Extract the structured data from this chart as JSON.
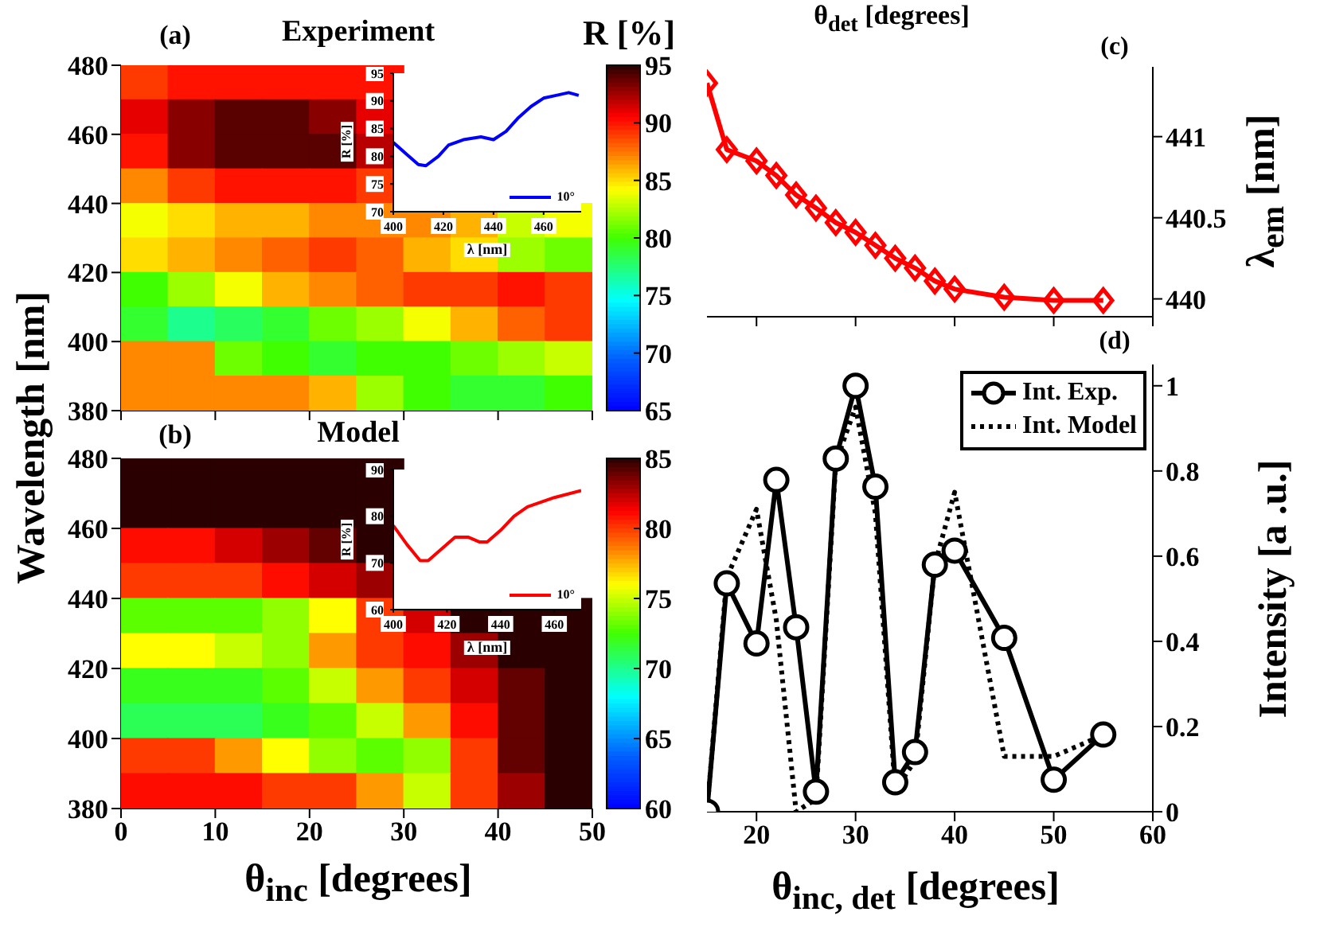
{
  "chart_data": [
    {
      "type": "heatmap",
      "title": "Experiment",
      "ylabel": "Wavelength [nm]",
      "clabel": "R [%]",
      "annotations": [
        "(a)"
      ],
      "x": [
        2.5,
        7.5,
        12.5,
        17.5,
        22.5,
        27.5,
        32.5,
        37.5,
        42.5,
        47.5
      ],
      "cells": [
        [
          89,
          90,
          90,
          90,
          90,
          90,
          null,
          null,
          null,
          null
        ],
        [
          91,
          93,
          94,
          94,
          93,
          91,
          null,
          null,
          null,
          null
        ],
        [
          90,
          93,
          94,
          94,
          94,
          92,
          null,
          null,
          null,
          null
        ],
        [
          87,
          89,
          90,
          90,
          90,
          89,
          null,
          null,
          null,
          null
        ],
        [
          84,
          85,
          86,
          86,
          87,
          87,
          87,
          86,
          83,
          84
        ],
        [
          85,
          86,
          87,
          88,
          89,
          88,
          86,
          85,
          82,
          81
        ],
        [
          80,
          82,
          84,
          86,
          87,
          88,
          89,
          89,
          90,
          89
        ],
        [
          79,
          77,
          78,
          79,
          81,
          82,
          84,
          86,
          88,
          89
        ],
        [
          87,
          87,
          81,
          80,
          79,
          80,
          80,
          81,
          82,
          83
        ],
        [
          87,
          87,
          87,
          87,
          86,
          82,
          80,
          79,
          79,
          80
        ]
      ],
      "xlim": [
        0,
        50
      ],
      "xticks": [
        {
          "value": 0,
          "label": null
        },
        {
          "value": 10,
          "label": null
        },
        {
          "value": 20,
          "label": null
        },
        {
          "value": 30,
          "label": null
        },
        {
          "value": 40,
          "label": null
        },
        {
          "value": 50,
          "label": null
        }
      ],
      "ylim": [
        380,
        480
      ],
      "yticks": [
        380,
        400,
        420,
        440,
        460,
        480
      ],
      "clim": [
        65,
        95
      ],
      "cticks": [
        65,
        70,
        75,
        80,
        85,
        90,
        95
      ],
      "tick_labels": "y"
    },
    {
      "type": "line",
      "xlabel": "λ [nm]",
      "ylabel": "R [%]",
      "legend": "bottom right",
      "x": [
        400,
        405,
        410,
        413,
        418,
        422,
        428,
        435,
        440,
        445,
        450,
        455,
        460,
        465,
        470,
        474
      ],
      "series": [
        {
          "name": "10°",
          "color": "#0000ff",
          "values": [
            82.5,
            80.5,
            78.5,
            78.3,
            80,
            82,
            83,
            83.5,
            83,
            84.5,
            87,
            89,
            90.5,
            91,
            91.5,
            91
          ]
        }
      ],
      "xlim": [
        400,
        475
      ],
      "xticks": [
        400,
        420,
        440,
        460
      ],
      "ylim": [
        70,
        95
      ],
      "yticks": [
        70,
        75,
        80,
        85,
        90,
        95
      ]
    },
    {
      "type": "heatmap",
      "title": "Model",
      "xlabel": "θ$_{inc}$ [degrees]",
      "annotations": [
        "(b)"
      ],
      "x": [
        2.5,
        7.5,
        12.5,
        17.5,
        22.5,
        27.5,
        32.5,
        37.5,
        42.5,
        47.5
      ],
      "cells": [
        [
          85,
          85,
          85,
          85,
          85,
          85,
          null,
          null,
          null,
          null
        ],
        [
          85,
          85,
          85,
          85,
          85,
          85,
          null,
          null,
          null,
          null
        ],
        [
          81,
          81,
          82,
          83,
          84,
          85,
          null,
          null,
          null,
          null
        ],
        [
          80,
          80,
          80,
          81,
          82,
          83,
          null,
          null,
          null,
          null
        ],
        [
          73,
          73,
          73,
          74,
          76,
          80,
          82,
          85,
          85,
          85
        ],
        [
          76,
          76,
          75,
          74,
          78,
          80,
          81,
          83,
          85,
          85
        ],
        [
          72,
          72,
          72,
          73,
          75,
          78,
          80,
          82,
          84,
          85
        ],
        [
          71,
          71,
          71,
          72,
          73,
          75,
          78,
          81,
          84,
          85
        ],
        [
          80,
          80,
          78,
          76,
          74,
          73,
          74,
          80,
          84,
          85
        ],
        [
          81,
          81,
          81,
          80,
          80,
          78,
          75,
          80,
          83,
          85
        ]
      ],
      "xlim": [
        0,
        50
      ],
      "xticks": [
        0,
        10,
        20,
        30,
        40,
        50
      ],
      "ylim": [
        380,
        480
      ],
      "yticks": [
        380,
        400,
        420,
        440,
        460,
        480
      ],
      "clim": [
        60,
        85
      ],
      "cticks": [
        60,
        65,
        70,
        75,
        80,
        85
      ]
    },
    {
      "type": "line",
      "xlabel": "λ [nm]",
      "ylabel": "R [%]",
      "legend": "bottom right",
      "x": [
        400,
        405,
        410,
        413,
        418,
        423,
        428,
        432,
        435,
        440,
        445,
        450,
        460,
        470
      ],
      "series": [
        {
          "name": "10°",
          "color": "#ff0000",
          "values": [
            78,
            74,
            70.5,
            70.5,
            73,
            75.5,
            75.5,
            74.5,
            74.5,
            77,
            80,
            82,
            84,
            85.5
          ]
        }
      ],
      "xlim": [
        400,
        470
      ],
      "xticks": [
        400,
        420,
        440,
        460
      ],
      "ylim": [
        60,
        90
      ],
      "yticks": [
        60,
        70,
        80,
        90
      ]
    },
    {
      "type": "line",
      "xlabel": "θ$_{det}$ [degrees]",
      "ylabel": "λ$_{em}$ [nm]",
      "annotations": [
        "(c)"
      ],
      "marker": "diamond",
      "x": [
        15,
        17,
        20,
        22,
        24,
        26,
        28,
        30,
        32,
        34,
        36,
        38,
        40,
        45,
        50,
        55
      ],
      "series": [
        {
          "color": "#ff0000",
          "values": [
            441.33,
            440.92,
            440.85,
            440.76,
            440.64,
            440.56,
            440.47,
            440.41,
            440.33,
            440.25,
            440.19,
            440.11,
            440.06,
            440.01,
            439.99,
            439.99
          ]
        }
      ],
      "xlim": [
        15,
        60
      ],
      "xticks": [
        {
          "value": 20,
          "label": null
        },
        {
          "value": 30,
          "label": null
        },
        {
          "value": 40,
          "label": null
        },
        {
          "value": 50,
          "label": null
        },
        {
          "value": 60,
          "label": null
        }
      ],
      "ylim": [
        439.89,
        441.43
      ],
      "yticks": [
        440,
        440.5,
        441
      ],
      "tick_labels": "y"
    },
    {
      "type": "line",
      "xlabel": "θ$_{inc, det}$ [degrees]",
      "ylabel": "Intensity [a .u.]",
      "annotations": [
        "(d)"
      ],
      "legend": "top right",
      "x": [
        15,
        17,
        20,
        22,
        24,
        26,
        28,
        30,
        32,
        34,
        36,
        38,
        40,
        45,
        50,
        55
      ],
      "series": [
        {
          "name": "Int. Exp.",
          "color": "#000000",
          "marker": "circle",
          "line_style": "solid",
          "values": [
            0,
            0.536,
            0.395,
            0.779,
            0.433,
            0.047,
            0.829,
            1.0,
            0.763,
            0.069,
            0.14,
            0.58,
            0.613,
            0.408,
            0.075,
            0.181
          ]
        },
        {
          "name": "Int. Model",
          "color": "#000000",
          "marker": "none",
          "line_style": "dotted",
          "values": [
            0,
            0.55,
            0.71,
            0.45,
            0,
            0.03,
            0.82,
            0.95,
            0.7,
            0.05,
            0.12,
            0.58,
            0.75,
            0.13,
            0.13,
            0.18
          ]
        }
      ],
      "xlim": [
        15,
        60
      ],
      "xticks": [
        20,
        30,
        40,
        50,
        60
      ],
      "ylim": [
        0,
        1.05
      ],
      "yticks": [
        0,
        0.2,
        0.4,
        0.6,
        0.8,
        1
      ]
    }
  ]
}
